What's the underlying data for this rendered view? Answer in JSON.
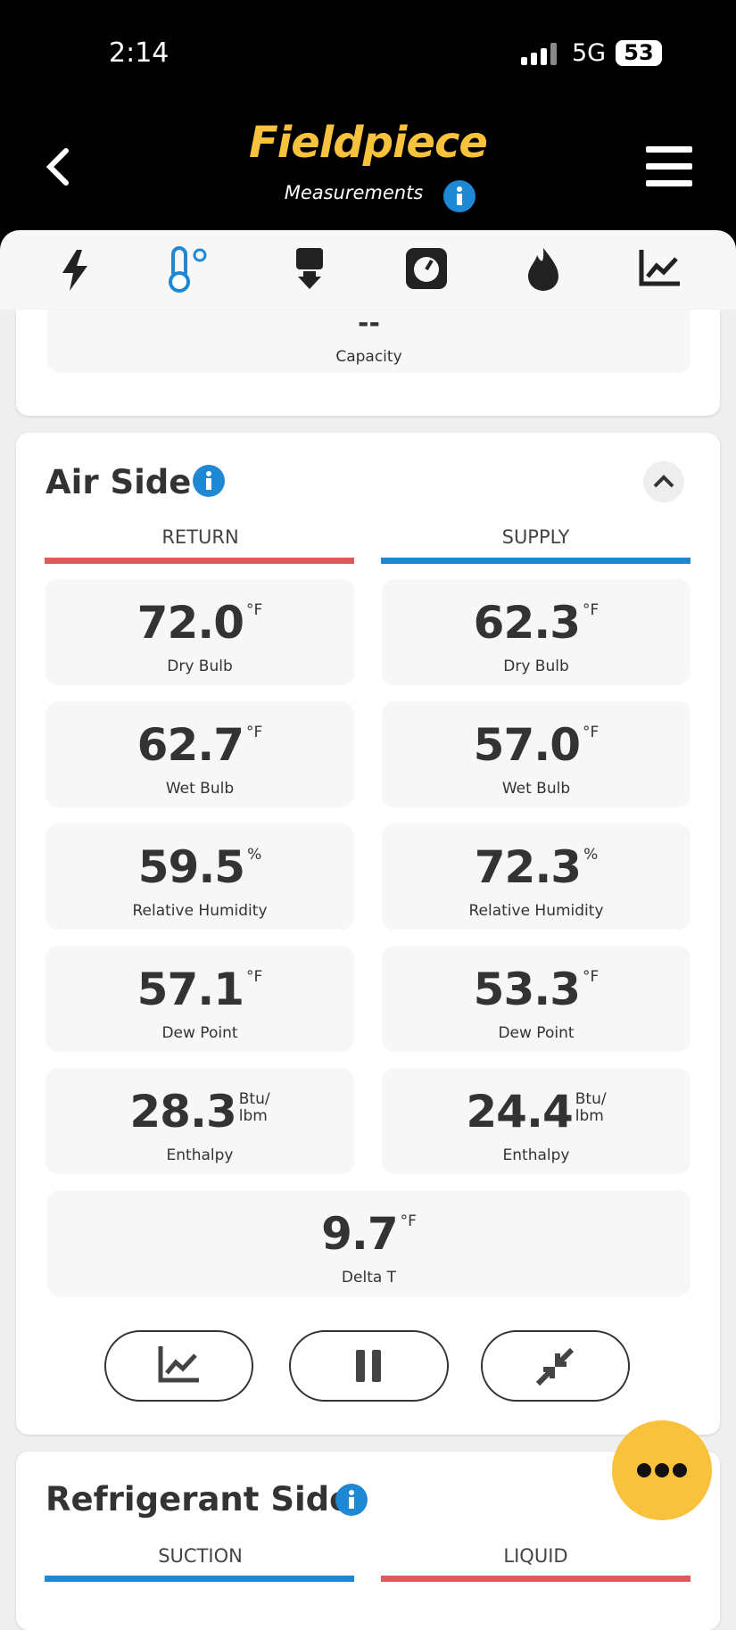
{
  "status_bar": {
    "time": "2:14",
    "network": "5G",
    "battery": "53"
  },
  "header": {
    "brand": "Fieldpiece",
    "subtitle": "Measurements"
  },
  "capacity_card": {
    "value": "--",
    "label": "Capacity"
  },
  "air_side": {
    "title": "Air Side",
    "columns": [
      "RETURN",
      "SUPPLY"
    ],
    "rows": [
      {
        "label": "Dry Bulb",
        "unit": [
          "°F"
        ],
        "values": [
          "72.0",
          "62.3"
        ]
      },
      {
        "label": "Wet Bulb",
        "unit": [
          "°F"
        ],
        "values": [
          "62.7",
          "57.0"
        ]
      },
      {
        "label": "Relative Humidity",
        "unit": [
          "%"
        ],
        "values": [
          "59.5",
          "72.3"
        ]
      },
      {
        "label": "Dew Point",
        "unit": [
          "°F"
        ],
        "values": [
          "57.1",
          "53.3"
        ]
      },
      {
        "label": "Enthalpy",
        "unit": [
          "Btu/",
          "lbm"
        ],
        "values": [
          "28.3",
          "24.4"
        ]
      }
    ],
    "delta_t": {
      "label": "Delta T",
      "unit": [
        "°F"
      ],
      "value": "9.7"
    }
  },
  "refrigerant_side": {
    "title": "Refrigerant Side",
    "columns": [
      "SUCTION",
      "LIQUID"
    ]
  }
}
